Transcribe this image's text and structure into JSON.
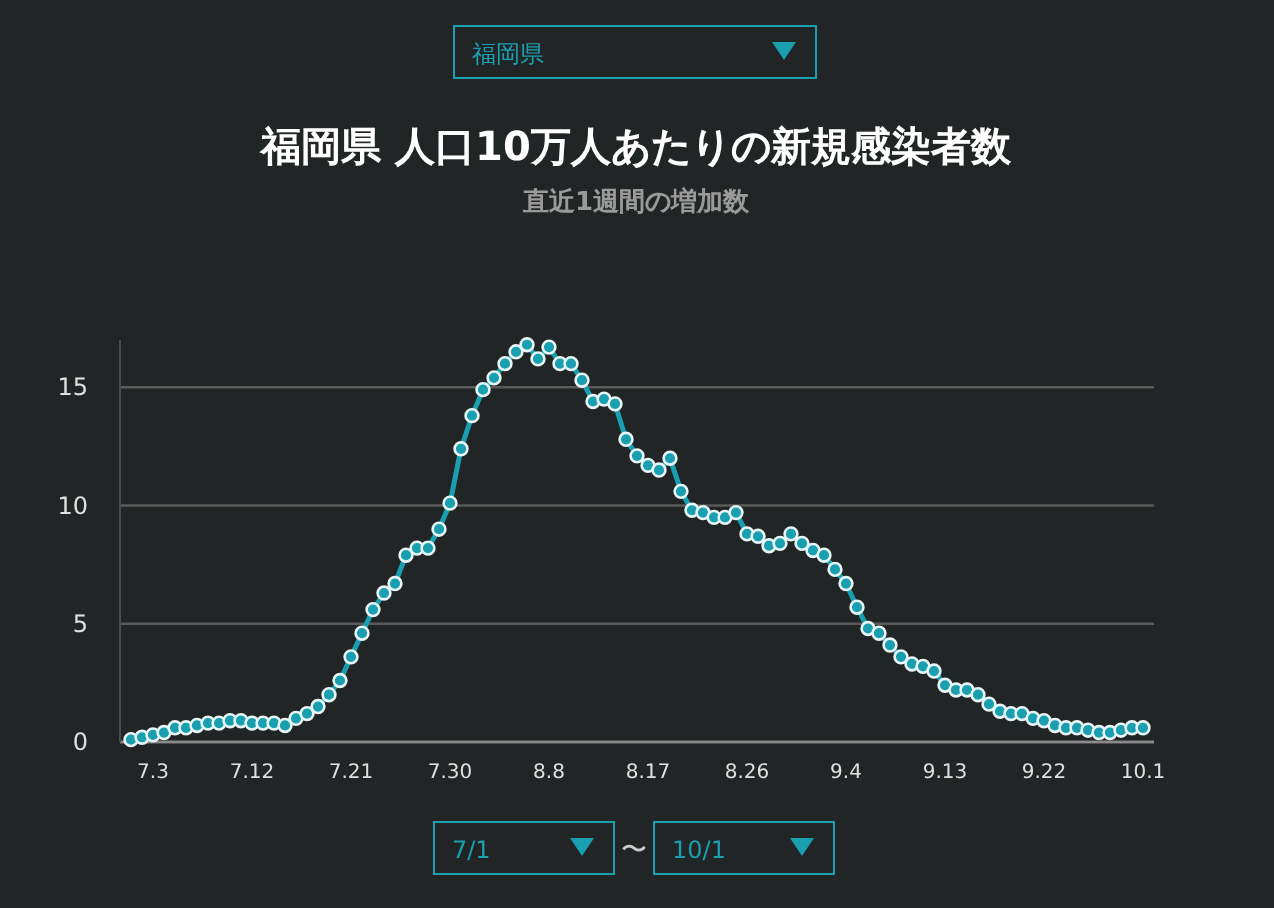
{
  "chart_data": {
    "type": "line",
    "title": "福岡県 人口10万人あたりの新規感染者数",
    "subtitle": "直近1週間の増加数",
    "annotations": [
      "福岡県",
      "7/1",
      "〜",
      "10/1"
    ],
    "x": [
      "--07-01",
      "--07-02",
      "--07-03",
      "--07-04",
      "--07-05",
      "--07-06",
      "--07-07",
      "--07-08",
      "--07-09",
      "--07-10",
      "--07-11",
      "--07-12",
      "--07-13",
      "--07-14",
      "--07-15",
      "--07-16",
      "--07-17",
      "--07-18",
      "--07-19",
      "--07-20",
      "--07-21",
      "--07-22",
      "--07-23",
      "--07-24",
      "--07-25",
      "--07-26",
      "--07-27",
      "--07-28",
      "--07-29",
      "--07-30",
      "--07-31",
      "--08-01",
      "--08-02",
      "--08-03",
      "--08-04",
      "--08-05",
      "--08-06",
      "--08-07",
      "--08-08",
      "--08-09",
      "--08-10",
      "--08-11",
      "--08-12",
      "--08-13",
      "--08-14",
      "--08-15",
      "--08-16",
      "--08-17",
      "--08-18",
      "--08-19",
      "--08-20",
      "--08-21",
      "--08-22",
      "--08-23",
      "--08-24",
      "--08-25",
      "--08-26",
      "--08-27",
      "--08-28",
      "--08-29",
      "--08-30",
      "--08-31",
      "--09-01",
      "--09-02",
      "--09-03",
      "--09-04",
      "--09-05",
      "--09-06",
      "--09-07",
      "--09-08",
      "--09-09",
      "--09-10",
      "--09-11",
      "--09-12",
      "--09-13",
      "--09-14",
      "--09-15",
      "--09-16",
      "--09-17",
      "--09-18",
      "--09-19",
      "--09-20",
      "--09-21",
      "--09-22",
      "--09-23",
      "--09-24",
      "--09-25",
      "--09-26",
      "--09-27",
      "--09-28",
      "--09-29",
      "--09-30",
      "--10-01"
    ],
    "series": [
      {
        "color": "#1a9fb0",
        "values": [
          0.1,
          0.2,
          0.3,
          0.4,
          0.6,
          0.6,
          0.7,
          0.8,
          0.8,
          0.9,
          0.9,
          0.8,
          0.8,
          0.8,
          0.7,
          1.0,
          1.2,
          1.5,
          2.0,
          2.6,
          3.6,
          4.6,
          5.6,
          6.3,
          6.7,
          7.9,
          8.2,
          8.2,
          9.0,
          10.1,
          12.4,
          13.8,
          14.9,
          15.4,
          16.0,
          16.5,
          16.8,
          16.2,
          16.7,
          16.0,
          16.0,
          15.3,
          14.4,
          14.5,
          14.3,
          12.8,
          12.1,
          11.7,
          11.5,
          12.0,
          10.6,
          9.8,
          9.7,
          9.5,
          9.5,
          9.7,
          8.8,
          8.7,
          8.3,
          8.4,
          8.8,
          8.4,
          8.1,
          7.9,
          7.3,
          6.7,
          5.7,
          4.8,
          4.6,
          4.1,
          3.6,
          3.3,
          3.2,
          3.0,
          2.4,
          2.2,
          2.2,
          2.0,
          1.6,
          1.3,
          1.2,
          1.2,
          1.0,
          0.9,
          0.7,
          0.6,
          0.6,
          0.5,
          0.4,
          0.4,
          0.5,
          0.6,
          0.6
        ]
      }
    ],
    "xlim": [
      "--06-30",
      "--10-02"
    ],
    "xticks": [
      {
        "value": "--07-03",
        "label": "7.3"
      },
      {
        "value": "--07-12",
        "label": "7.12"
      },
      {
        "value": "--07-21",
        "label": "7.21"
      },
      {
        "value": "--07-30",
        "label": "7.30"
      },
      {
        "value": "--08-08",
        "label": "8.8"
      },
      {
        "value": "--08-17",
        "label": "8.17"
      },
      {
        "value": "--08-26",
        "label": "8.26"
      },
      {
        "value": "--09-04",
        "label": "9.4"
      },
      {
        "value": "--09-13",
        "label": "9.13"
      },
      {
        "value": "--09-22",
        "label": "9.22"
      },
      {
        "value": "--10-01",
        "label": "10.1"
      }
    ],
    "ylim": [
      0,
      17
    ],
    "yticks": [
      0,
      5,
      10,
      15
    ],
    "grid": "y",
    "marker": "circle",
    "line_style": "solid"
  }
}
